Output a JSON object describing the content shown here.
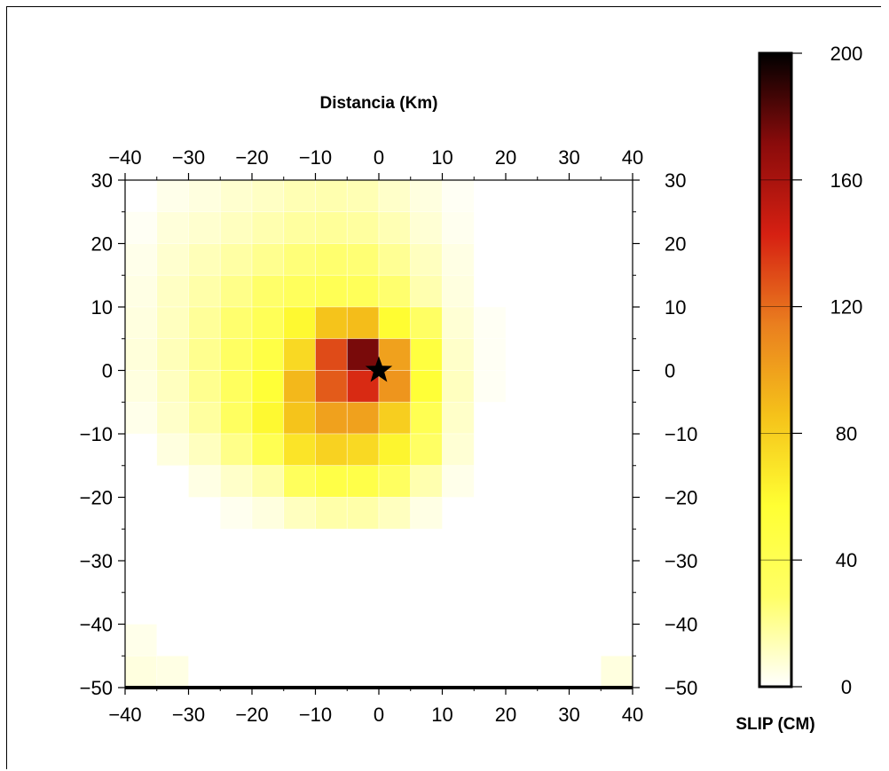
{
  "chart_data": {
    "type": "heatmap",
    "title": "Distancia (Km)",
    "colorbar_label": "SLIP (CM)",
    "colorbar_range": [
      0,
      200
    ],
    "colorbar_ticks": [
      0,
      40,
      80,
      120,
      160,
      200
    ],
    "colormap": [
      "#ffffff",
      "#ffff66",
      "#ffff33",
      "#f5c21a",
      "#ea7f1f",
      "#d62012",
      "#8a0b0b",
      "#000000"
    ],
    "xlim": [
      -40,
      40
    ],
    "ylim": [
      -50,
      30
    ],
    "xticks": [
      -40,
      -30,
      -20,
      -10,
      0,
      10,
      20,
      30,
      40
    ],
    "yticks": [
      -50,
      -40,
      -30,
      -20,
      -10,
      0,
      10,
      20,
      30
    ],
    "tick_labels_x": [
      "−40",
      "−30",
      "−20",
      "−10",
      "0",
      "10",
      "20",
      "30",
      "40"
    ],
    "tick_labels_y": [
      "−50",
      "−40",
      "−30",
      "−20",
      "−10",
      "0",
      "10",
      "20",
      "30"
    ],
    "colorbar_tick_labels": [
      "0",
      "40",
      "80",
      "120",
      "160",
      "200"
    ],
    "cell_size_km": 5,
    "grid_x_start": -40,
    "grid_y_top": 30,
    "slip_grid": [
      [
        0,
        4,
        6,
        9,
        11,
        14,
        15,
        14,
        10,
        6,
        2,
        0,
        0,
        0,
        0,
        0
      ],
      [
        2,
        7,
        9,
        12,
        15,
        18,
        19,
        18,
        14,
        8,
        3,
        0,
        0,
        0,
        0,
        0
      ],
      [
        4,
        9,
        13,
        17,
        21,
        25,
        27,
        26,
        20,
        12,
        5,
        0,
        0,
        0,
        0,
        0
      ],
      [
        5,
        11,
        16,
        22,
        28,
        34,
        38,
        36,
        27,
        15,
        6,
        0,
        0,
        0,
        0,
        0
      ],
      [
        6,
        12,
        19,
        27,
        37,
        60,
        85,
        88,
        58,
        30,
        8,
        2,
        0,
        0,
        0,
        0
      ],
      [
        7,
        13,
        21,
        31,
        47,
        75,
        130,
        175,
        100,
        50,
        10,
        2,
        0,
        0,
        0,
        0
      ],
      [
        6,
        12,
        21,
        33,
        55,
        90,
        125,
        140,
        105,
        55,
        12,
        2,
        0,
        0,
        0,
        0
      ],
      [
        4,
        10,
        18,
        32,
        60,
        85,
        100,
        100,
        80,
        40,
        10,
        0,
        0,
        0,
        0,
        0
      ],
      [
        0,
        6,
        12,
        22,
        40,
        70,
        78,
        75,
        62,
        30,
        8,
        0,
        0,
        0,
        0,
        0
      ],
      [
        0,
        0,
        5,
        10,
        16,
        34,
        46,
        45,
        32,
        15,
        4,
        0,
        0,
        0,
        0,
        0
      ],
      [
        0,
        0,
        0,
        3,
        6,
        12,
        16,
        16,
        12,
        5,
        0,
        0,
        0,
        0,
        0,
        0
      ],
      [
        0,
        0,
        0,
        0,
        0,
        0,
        0,
        0,
        0,
        0,
        0,
        0,
        0,
        0,
        0,
        0
      ],
      [
        0,
        0,
        0,
        0,
        0,
        0,
        0,
        0,
        0,
        0,
        0,
        0,
        0,
        0,
        0,
        0
      ],
      [
        0,
        0,
        0,
        0,
        0,
        0,
        0,
        0,
        0,
        0,
        0,
        0,
        0,
        0,
        0,
        0
      ],
      [
        4,
        0,
        0,
        0,
        0,
        0,
        0,
        0,
        0,
        0,
        0,
        0,
        0,
        0,
        0,
        0
      ],
      [
        6,
        5,
        0,
        0,
        0,
        0,
        0,
        0,
        0,
        0,
        0,
        0,
        0,
        0,
        0,
        6
      ]
    ],
    "hypocenter": {
      "x": 0,
      "y": 0,
      "marker": "star-icon"
    }
  }
}
